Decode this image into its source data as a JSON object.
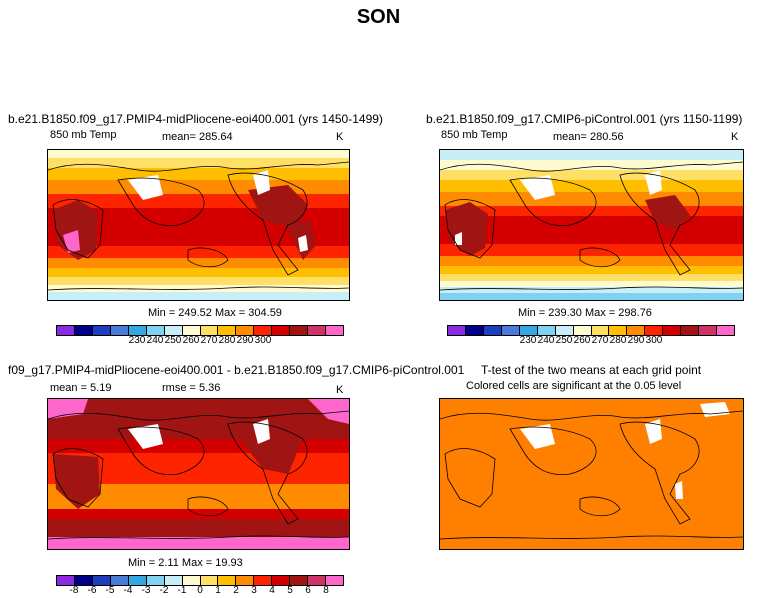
{
  "title": "SON",
  "panels": [
    {
      "id": "top-left",
      "title": "b.e21.B1850.f09_g17.PMIP4-midPliocene-eoi400.001 (yrs 1450-1499)",
      "variable": "850 mb Temp",
      "stat": "mean= 285.64",
      "units": "K",
      "minmax": "Min = 249.52 Max = 304.59"
    },
    {
      "id": "top-right",
      "title": "b.e21.B1850.f09_g17.CMIP6-piControl.001 (yrs 1150-1199)",
      "variable": "850 mb Temp",
      "stat": "mean= 280.56",
      "units": "K",
      "minmax": "Min = 239.30 Max = 298.76"
    },
    {
      "id": "bottom-left",
      "title": "f09_g17.PMIP4-midPliocene-eoi400.001 - b.e21.B1850.f09_g17.CMIP6-piControl.001",
      "variable": "mean =    5.19",
      "stat": "rmse =    5.36",
      "units": "K",
      "minmax": "Min =    2.11 Max =   19.93"
    },
    {
      "id": "bottom-right",
      "title": "T-test of the two means at each grid point",
      "subtitle": "Colored cells are significant at the 0.05 level"
    }
  ],
  "colorbar_abs": {
    "colors": [
      "#8a2be2",
      "#00008b",
      "#1c3fbf",
      "#4a7bd9",
      "#33a8e0",
      "#7fd3f0",
      "#c8eef8",
      "#fffbd0",
      "#ffe066",
      "#ffbf00",
      "#ff8c00",
      "#ff2400",
      "#d40000",
      "#a01414",
      "#cc3366",
      "#ff66cc"
    ],
    "ticks": [
      "230",
      "240",
      "250",
      "260",
      "270",
      "280",
      "290",
      "300"
    ]
  },
  "colorbar_diff": {
    "colors": [
      "#8a2be2",
      "#00008b",
      "#1c3fbf",
      "#4a7bd9",
      "#33a8e0",
      "#7fd3f0",
      "#c8eef8",
      "#fffbd0",
      "#ffe066",
      "#ffbf00",
      "#ff8c00",
      "#ff2400",
      "#d40000",
      "#a01414",
      "#cc3366",
      "#ff66cc"
    ],
    "ticks": [
      "-8",
      "-6",
      "-5",
      "-4",
      "-3",
      "-2",
      "-1",
      "0",
      "1",
      "2",
      "3",
      "4",
      "5",
      "6",
      "8"
    ]
  },
  "chart_data": [
    {
      "type": "heatmap",
      "title": "b.e21.B1850.f09_g17.PMIP4-midPliocene-eoi400.001 (yrs 1450-1499)",
      "variable": "850 mb Temp",
      "units": "K",
      "mean": 285.64,
      "min": 249.52,
      "max": 304.59,
      "levels": [
        230,
        240,
        250,
        260,
        270,
        280,
        290,
        300
      ]
    },
    {
      "type": "heatmap",
      "title": "b.e21.B1850.f09_g17.CMIP6-piControl.001 (yrs 1150-1199)",
      "variable": "850 mb Temp",
      "units": "K",
      "mean": 280.56,
      "min": 239.3,
      "max": 298.76,
      "levels": [
        230,
        240,
        250,
        260,
        270,
        280,
        290,
        300
      ]
    },
    {
      "type": "heatmap",
      "title": "f09_g17.PMIP4-midPliocene-eoi400.001 - b.e21.B1850.f09_g17.CMIP6-piControl.001",
      "units": "K",
      "mean": 5.19,
      "rmse": 5.36,
      "min": 2.11,
      "max": 19.93,
      "levels": [
        -8,
        -6,
        -5,
        -4,
        -3,
        -2,
        -1,
        0,
        1,
        2,
        3,
        4,
        5,
        6,
        8
      ]
    },
    {
      "type": "heatmap",
      "title": "T-test of the two means at each grid point",
      "subtitle": "Colored cells are significant at the 0.05 level"
    }
  ]
}
